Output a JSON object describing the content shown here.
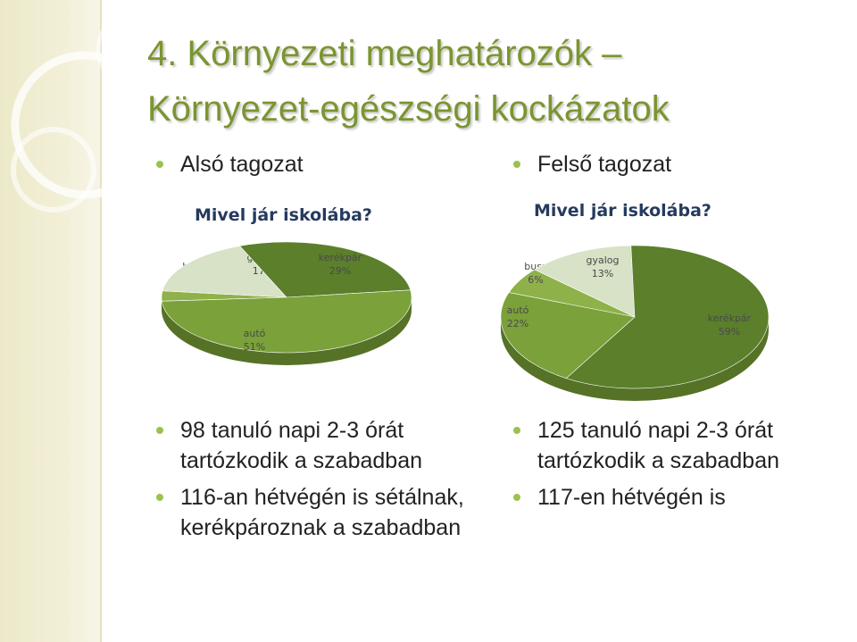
{
  "title": {
    "line1": "4. Környezeti meghatározók –",
    "line2": "Környezet-egészségi kockázatok"
  },
  "left": {
    "heading": "Alsó tagozat",
    "notes": [
      "98 tanuló napi 2-3 órát tartózkodik a szabadban",
      "116-an hétvégén is sétálnak, kerékpároznak a szabadban"
    ]
  },
  "right": {
    "heading": "Felső tagozat",
    "notes": [
      "125 tanuló napi 2-3 órát tartózkodik a szabadban",
      "117-en hétvégén is"
    ]
  },
  "colors": {
    "title": "#7b9530",
    "bullet": "#9bc24e",
    "chart_title": "#253a5e"
  },
  "chart_data": [
    {
      "type": "pie",
      "title": "Mivel jár iskolába?",
      "slices": [
        {
          "label": "busz",
          "value": 3,
          "pct_label": "3%",
          "color": "#8fb14a"
        },
        {
          "label": "gyalog",
          "value": 17,
          "pct_label": "17%",
          "color": "#d7e2c6"
        },
        {
          "label": "kerékpár",
          "value": 29,
          "pct_label": "29%",
          "color": "#5b7f2b"
        },
        {
          "label": "autó",
          "value": 51,
          "pct_label": "51%",
          "color": "#7aa13a"
        }
      ],
      "legend": "none"
    },
    {
      "type": "pie",
      "title": "Mivel jár iskolába?",
      "slices": [
        {
          "label": "busz",
          "value": 6,
          "pct_label": "6%",
          "color": "#8fb14a"
        },
        {
          "label": "gyalog",
          "value": 13,
          "pct_label": "13%",
          "color": "#d7e2c6"
        },
        {
          "label": "kerékpár",
          "value": 59,
          "pct_label": "59%",
          "color": "#5b7f2b"
        },
        {
          "label": "autó",
          "value": 22,
          "pct_label": "22%",
          "color": "#7aa13a"
        }
      ],
      "legend": "none"
    }
  ]
}
